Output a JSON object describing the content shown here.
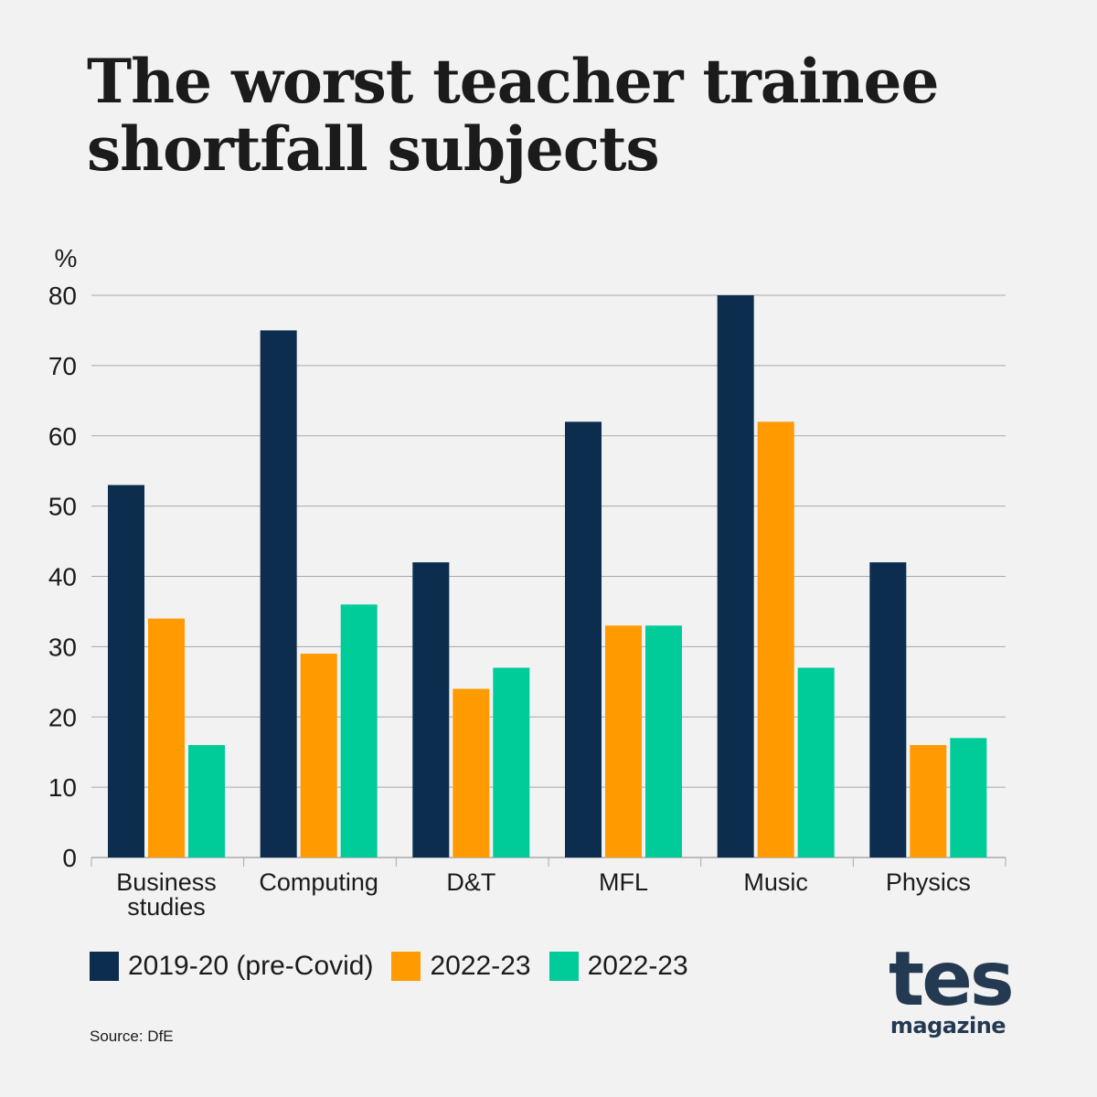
{
  "title": "The worst teacher trainee shortfall subjects",
  "source": "Source: DfE",
  "logo": {
    "main": "tes",
    "sub": "magazine"
  },
  "colors": {
    "background": "#f2f2f2",
    "grid": "#a9a9a9",
    "series": [
      "#0c2d4e",
      "#ff9a00",
      "#00cc99"
    ]
  },
  "chart_data": {
    "type": "bar",
    "ylabel": "%",
    "ylim": [
      0,
      80
    ],
    "yticks": [
      0,
      10,
      20,
      30,
      40,
      50,
      60,
      70,
      80
    ],
    "grid": true,
    "legend_position": "bottom-left",
    "categories": [
      "Business studies",
      "Computing",
      "D&T",
      "MFL",
      "Music",
      "Physics"
    ],
    "category_lines": [
      [
        "Business",
        "studies"
      ],
      [
        "Computing"
      ],
      [
        "D&T"
      ],
      [
        "MFL"
      ],
      [
        "Music"
      ],
      [
        "Physics"
      ]
    ],
    "series": [
      {
        "name": "2019-20 (pre-Covid)",
        "color": "#0c2d4e",
        "values": [
          53,
          75,
          42,
          62,
          80,
          42
        ]
      },
      {
        "name": "2022-23",
        "color": "#ff9a00",
        "values": [
          34,
          29,
          24,
          33,
          62,
          16
        ]
      },
      {
        "name": "2022-23",
        "color": "#00cc99",
        "values": [
          16,
          36,
          27,
          33,
          27,
          17
        ]
      }
    ]
  }
}
